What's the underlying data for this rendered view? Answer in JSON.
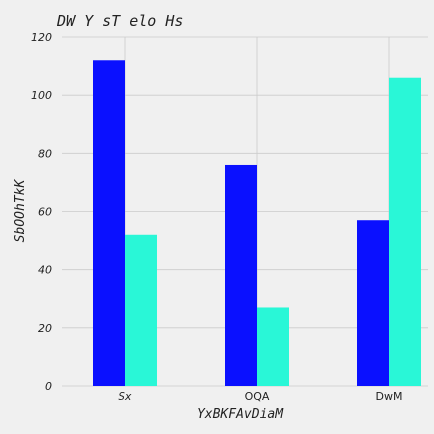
{
  "chart_data": {
    "type": "bar",
    "title": "DW Y sT elo Hs",
    "xlabel": "YxBKFAvDiaM",
    "ylabel": "SbOOhTkK",
    "categories": [
      "Sx",
      "OQA",
      "DwM"
    ],
    "category_styles": [
      "italic-mono",
      "plain",
      "plain"
    ],
    "series": [
      {
        "values": [
          112,
          76,
          57
        ],
        "color": "#0a10ff"
      },
      {
        "values": [
          52,
          27,
          106
        ],
        "color": "#29f7d7"
      }
    ],
    "ylim": [
      0,
      120
    ],
    "yticks": [
      0,
      20,
      40,
      60,
      80,
      100,
      120
    ],
    "grid": true,
    "legend": "none",
    "background": "#f0f0f0"
  }
}
